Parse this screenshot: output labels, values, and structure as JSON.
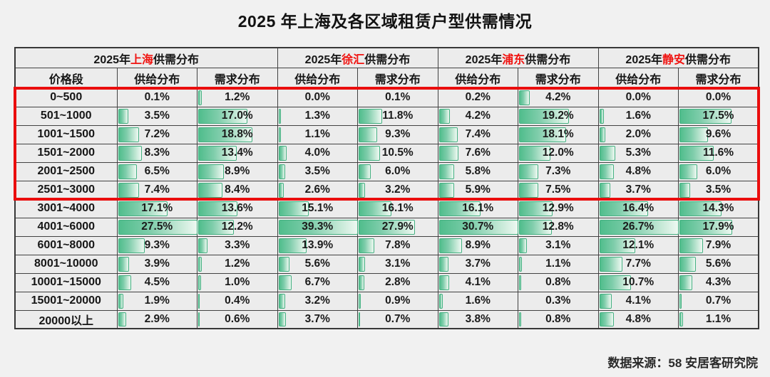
{
  "title": "2025 年上海及各区域租赁户型供需情况",
  "source_note": "数据来源：58 安居客研究院",
  "colors": {
    "bar_green": "#50bd8c",
    "bar_green_fade": "#eef8f2",
    "bar_border": "#45b182",
    "highlight_red": "#ea0d0d",
    "region_name_red": "#f01310",
    "cell_background": "#ececec",
    "grid_line": "#424242"
  },
  "chart_data": {
    "type": "table",
    "title": "2025 年上海及各区域租赁户型供需情况",
    "unit": "%",
    "bar_style": "green-gradient-databar-scaled-per-region-max",
    "group_header_prefix": "2025年",
    "group_header_suffix": "供需分布",
    "columns": {
      "price_header": "价格段",
      "supply_header": "供给分布",
      "demand_header": "需求分布"
    },
    "price_bands": [
      "0~500",
      "501~1000",
      "1001~1500",
      "1501~2000",
      "2001~2500",
      "2501~3000",
      "3001~4000",
      "4001~6000",
      "6001~8000",
      "8001~10000",
      "10001~15000",
      "15001~20000",
      "20000以上"
    ],
    "regions": [
      {
        "name": "上海",
        "supply": [
          0.1,
          3.5,
          7.2,
          8.3,
          6.5,
          7.4,
          17.1,
          27.5,
          9.3,
          3.9,
          4.5,
          1.9,
          2.9
        ],
        "demand": [
          1.2,
          17.0,
          18.8,
          13.4,
          8.9,
          8.4,
          13.6,
          12.2,
          3.3,
          1.2,
          1.0,
          0.4,
          0.6
        ]
      },
      {
        "name": "徐汇",
        "supply": [
          0.0,
          1.3,
          1.1,
          4.0,
          3.5,
          2.6,
          15.1,
          39.3,
          13.9,
          5.6,
          6.7,
          3.2,
          3.7
        ],
        "demand": [
          0.1,
          11.8,
          9.3,
          10.5,
          6.0,
          3.2,
          16.1,
          27.9,
          7.8,
          3.1,
          2.8,
          0.9,
          0.7
        ]
      },
      {
        "name": "浦东",
        "supply": [
          0.2,
          4.2,
          7.4,
          7.6,
          5.8,
          5.9,
          16.1,
          30.7,
          8.9,
          3.7,
          4.1,
          1.6,
          3.8
        ],
        "demand": [
          4.2,
          19.2,
          18.1,
          12.0,
          7.3,
          7.5,
          12.9,
          12.8,
          3.1,
          1.1,
          0.8,
          0.3,
          0.8
        ]
      },
      {
        "name": "静安",
        "supply": [
          0.0,
          1.6,
          2.0,
          5.3,
          4.8,
          3.7,
          16.4,
          26.7,
          12.1,
          7.7,
          10.7,
          4.1,
          4.8
        ],
        "demand": [
          0.0,
          17.5,
          9.6,
          11.6,
          6.0,
          3.5,
          14.3,
          17.9,
          7.9,
          5.6,
          4.3,
          0.7,
          1.1
        ]
      }
    ],
    "highlight_rows": [
      0,
      5
    ],
    "highlighted_row_range": {
      "from": "0~500",
      "to": "2501~3000"
    }
  }
}
